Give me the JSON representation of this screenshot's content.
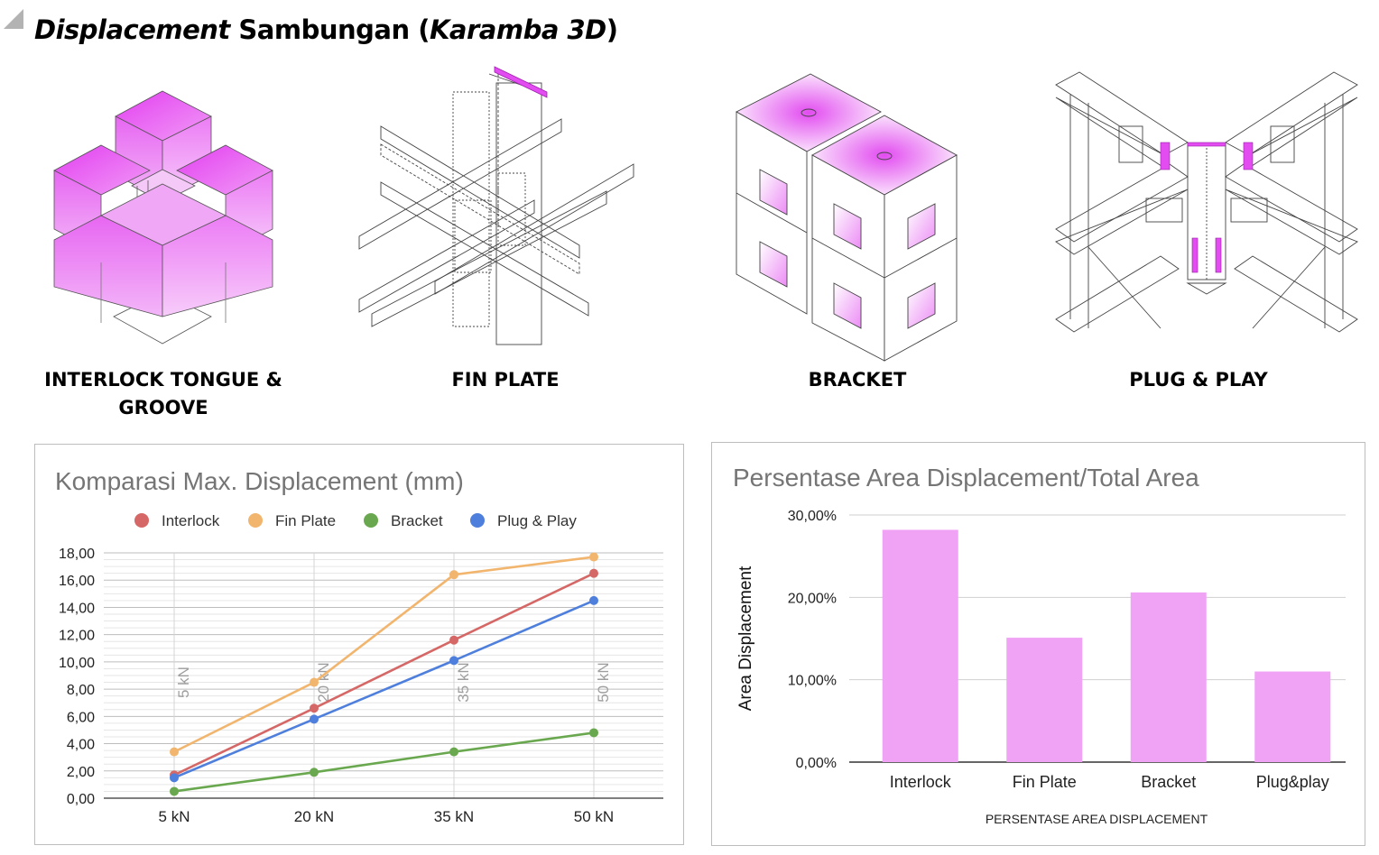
{
  "page": {
    "title_italic": "Displacement",
    "title_mid": "Sambungan (",
    "title_italic2": "Karamba 3D",
    "title_end": ")"
  },
  "figures": [
    {
      "caption_line1": "INTERLOCK TONGUE &",
      "caption_line2": "GROOVE"
    },
    {
      "caption_line1": "FIN PLATE"
    },
    {
      "caption_line1": "BRACKET"
    },
    {
      "caption_line1": "PLUG & PLAY"
    }
  ],
  "colors": {
    "interlock": "#d56866",
    "fin_plate": "#f2b56e",
    "bracket": "#6aa84f",
    "plug_play": "#4f7fdc",
    "bar": "#f0a2f5",
    "magenta": "#e24cf0"
  },
  "chart_data": [
    {
      "type": "line",
      "title": "Komparasi Max. Displacement (mm)",
      "categories": [
        "5 kN",
        "20 kN",
        "35 kN",
        "50 kN"
      ],
      "vertical_annotations": [
        "5 kN",
        "20 kN",
        "35 kN",
        "50 kN"
      ],
      "series": [
        {
          "name": "Interlock",
          "values": [
            1.7,
            6.6,
            11.6,
            16.5
          ]
        },
        {
          "name": "Fin Plate",
          "values": [
            3.4,
            8.5,
            16.4,
            17.7
          ]
        },
        {
          "name": "Bracket",
          "values": [
            0.5,
            1.9,
            3.4,
            4.8
          ]
        },
        {
          "name": "Plug & Play",
          "values": [
            1.5,
            5.8,
            10.1,
            14.5
          ]
        }
      ],
      "ylim": [
        0,
        18
      ],
      "yticks": [
        "0,00",
        "2,00",
        "4,00",
        "6,00",
        "8,00",
        "10,00",
        "12,00",
        "14,00",
        "16,00",
        "18,00"
      ],
      "xlabel": "",
      "ylabel": "",
      "legend": "top"
    },
    {
      "type": "bar",
      "title": "Persentase Area Displacement/Total Area",
      "categories": [
        "Interlock",
        "Fin Plate",
        "Bracket",
        "Plug&play"
      ],
      "values": [
        28.2,
        15.1,
        20.6,
        11.0
      ],
      "ylim": [
        0,
        30
      ],
      "yticks": [
        "0,00%",
        "10,00%",
        "20,00%",
        "30,00%"
      ],
      "ylabel": "Area Displacement",
      "xlabel": "PERSENTASE AREA DISPLACEMENT"
    }
  ]
}
